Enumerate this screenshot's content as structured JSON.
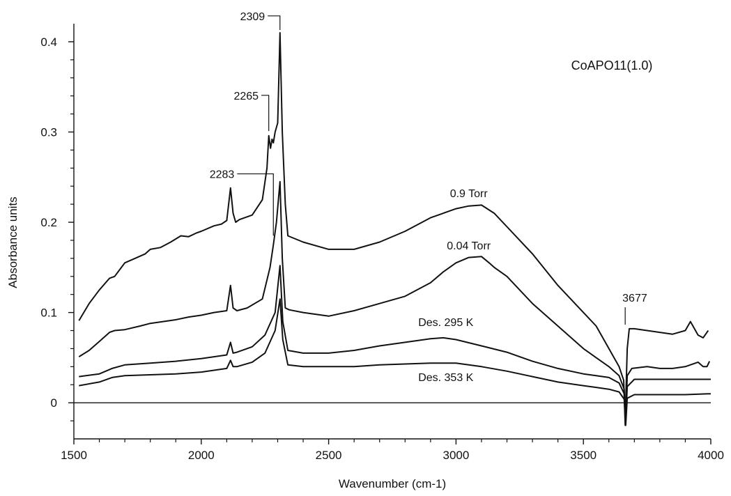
{
  "chart_data": {
    "type": "line",
    "title": "",
    "sample_label": "CoAPO11(1.0)",
    "xlabel": "Wavenumber (cm-1)",
    "ylabel": "Absorbance units",
    "xlim": [
      1500,
      4000
    ],
    "ylim": [
      -0.04,
      0.42
    ],
    "xticks": [
      1500,
      2000,
      2500,
      3000,
      3500,
      4000
    ],
    "xtick_labels": [
      "1500",
      "2000",
      "2500",
      "3000",
      "3500",
      "4000"
    ],
    "yticks": [
      0,
      0.1,
      0.2,
      0.3,
      0.4
    ],
    "ytick_labels": [
      "0",
      "0.1",
      "0.2",
      "0.3",
      "0.4"
    ],
    "grid": false,
    "series": [
      {
        "name": "0.9 Torr",
        "label_at": [
          3050,
          0.228
        ],
        "x": [
          1520,
          1560,
          1600,
          1640,
          1660,
          1700,
          1740,
          1780,
          1800,
          1840,
          1880,
          1920,
          1950,
          1980,
          2000,
          2050,
          2080,
          2100,
          2115,
          2125,
          2135,
          2150,
          2200,
          2240,
          2258,
          2265,
          2272,
          2278,
          2283,
          2290,
          2300,
          2309,
          2318,
          2330,
          2340,
          2400,
          2500,
          2600,
          2700,
          2800,
          2900,
          3000,
          3050,
          3100,
          3150,
          3200,
          3300,
          3400,
          3500,
          3550,
          3600,
          3640,
          3658,
          3664,
          3668,
          3672,
          3680,
          3700,
          3750,
          3800,
          3850,
          3900,
          3920,
          3950,
          3970,
          3990
        ],
        "y": [
          0.091,
          0.11,
          0.125,
          0.138,
          0.14,
          0.155,
          0.16,
          0.165,
          0.17,
          0.172,
          0.178,
          0.185,
          0.184,
          0.188,
          0.19,
          0.196,
          0.198,
          0.202,
          0.238,
          0.21,
          0.2,
          0.203,
          0.208,
          0.225,
          0.26,
          0.296,
          0.282,
          0.292,
          0.288,
          0.3,
          0.31,
          0.41,
          0.3,
          0.22,
          0.185,
          0.178,
          0.17,
          0.17,
          0.178,
          0.19,
          0.205,
          0.215,
          0.218,
          0.219,
          0.21,
          0.195,
          0.165,
          0.13,
          0.1,
          0.085,
          0.06,
          0.04,
          0.025,
          -0.025,
          0.02,
          0.06,
          0.082,
          0.082,
          0.08,
          0.078,
          0.076,
          0.08,
          0.09,
          0.075,
          0.072,
          0.08
        ]
      },
      {
        "name": "0.04 Torr",
        "label_at": [
          3050,
          0.17
        ],
        "x": [
          1520,
          1560,
          1600,
          1640,
          1660,
          1700,
          1760,
          1800,
          1850,
          1900,
          1950,
          2000,
          2050,
          2100,
          2115,
          2125,
          2140,
          2180,
          2240,
          2270,
          2283,
          2295,
          2309,
          2318,
          2330,
          2345,
          2400,
          2500,
          2600,
          2700,
          2800,
          2900,
          2950,
          3000,
          3050,
          3100,
          3130,
          3150,
          3200,
          3300,
          3400,
          3500,
          3550,
          3600,
          3640,
          3660,
          3666,
          3672,
          3690,
          3750,
          3800,
          3850,
          3900,
          3950,
          3970,
          3985,
          3995
        ],
        "y": [
          0.051,
          0.058,
          0.068,
          0.078,
          0.08,
          0.081,
          0.085,
          0.088,
          0.09,
          0.092,
          0.095,
          0.097,
          0.1,
          0.102,
          0.13,
          0.105,
          0.102,
          0.105,
          0.115,
          0.15,
          0.175,
          0.2,
          0.245,
          0.16,
          0.105,
          0.103,
          0.1,
          0.096,
          0.102,
          0.11,
          0.118,
          0.133,
          0.145,
          0.155,
          0.161,
          0.162,
          0.155,
          0.15,
          0.14,
          0.11,
          0.085,
          0.06,
          0.05,
          0.04,
          0.03,
          0.015,
          -0.02,
          0.03,
          0.038,
          0.04,
          0.038,
          0.038,
          0.04,
          0.045,
          0.04,
          0.04,
          0.046
        ]
      },
      {
        "name": "Des. 295 K",
        "label_at": [
          2960,
          0.085
        ],
        "x": [
          1520,
          1600,
          1650,
          1700,
          1800,
          1900,
          2000,
          2100,
          2115,
          2125,
          2140,
          2200,
          2250,
          2290,
          2309,
          2320,
          2340,
          2400,
          2500,
          2600,
          2700,
          2800,
          2900,
          2950,
          3000,
          3100,
          3200,
          3300,
          3400,
          3500,
          3550,
          3600,
          3640,
          3660,
          3666,
          3672,
          3700,
          3800,
          3900,
          4000
        ],
        "y": [
          0.029,
          0.032,
          0.038,
          0.042,
          0.044,
          0.046,
          0.049,
          0.053,
          0.067,
          0.055,
          0.056,
          0.062,
          0.075,
          0.1,
          0.152,
          0.09,
          0.058,
          0.055,
          0.055,
          0.058,
          0.063,
          0.067,
          0.071,
          0.072,
          0.07,
          0.063,
          0.056,
          0.046,
          0.038,
          0.032,
          0.03,
          0.028,
          0.022,
          0.01,
          -0.022,
          0.018,
          0.026,
          0.026,
          0.026,
          0.026
        ]
      },
      {
        "name": "Des. 353 K",
        "label_at": [
          2960,
          0.024
        ],
        "x": [
          1520,
          1600,
          1650,
          1700,
          1800,
          1900,
          2000,
          2100,
          2115,
          2125,
          2140,
          2200,
          2250,
          2290,
          2309,
          2320,
          2340,
          2400,
          2500,
          2600,
          2700,
          2800,
          2900,
          3000,
          3100,
          3200,
          3300,
          3400,
          3500,
          3550,
          3600,
          3640,
          3660,
          3666,
          3672,
          3700,
          3800,
          3900,
          4000
        ],
        "y": [
          0.019,
          0.023,
          0.028,
          0.03,
          0.031,
          0.032,
          0.034,
          0.038,
          0.047,
          0.04,
          0.04,
          0.045,
          0.055,
          0.08,
          0.115,
          0.07,
          0.042,
          0.04,
          0.04,
          0.04,
          0.042,
          0.043,
          0.044,
          0.044,
          0.04,
          0.035,
          0.029,
          0.023,
          0.019,
          0.017,
          0.015,
          0.012,
          0.004,
          -0.025,
          0.005,
          0.009,
          0.009,
          0.009,
          0.01
        ]
      }
    ],
    "baseline": {
      "y": 0
    },
    "annotations": [
      {
        "text": "2309",
        "x": 2309,
        "tip_y": 0.41,
        "text_pos": [
          2250,
          0.424
        ],
        "anchor": "end"
      },
      {
        "text": "2265",
        "x": 2265,
        "tip_y": 0.298,
        "text_pos": [
          2225,
          0.336
        ],
        "anchor": "end"
      },
      {
        "text": "2283",
        "x": 2283,
        "tip_y": 0.182,
        "text_pos": [
          2130,
          0.249
        ],
        "anchor": "end"
      },
      {
        "text": "3677",
        "x": 3664,
        "tip_y": 0.085,
        "text_pos": [
          3662,
          0.112
        ],
        "anchor": "start"
      }
    ]
  }
}
